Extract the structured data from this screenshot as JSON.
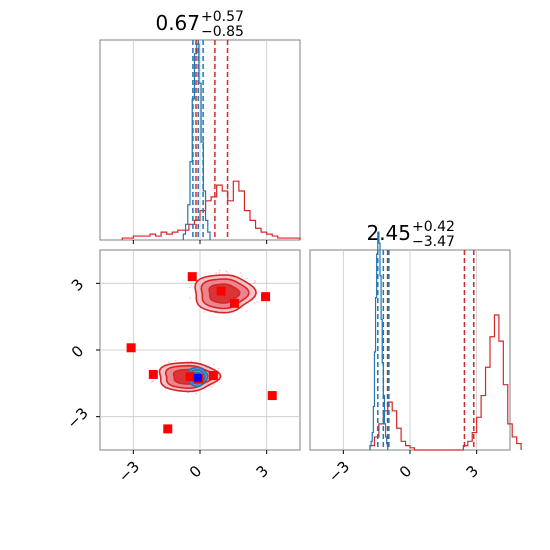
{
  "chart_data": {
    "type": "corner",
    "x_ticks": [
      -3,
      0,
      3
    ],
    "y_ticks": [
      -3,
      0,
      3
    ],
    "range": [
      -4.5,
      4.5
    ],
    "grid": true,
    "colors": {
      "posterior_a": "#d62728",
      "posterior_b": "#1f77b4",
      "points": "#ff0000",
      "truth": "#0000ff"
    },
    "marginal_x": {
      "title": {
        "median": "0.67",
        "upper": "+0.57",
        "lower": "−0.85"
      },
      "posterior_a_quantiles": [
        -0.18,
        0.67,
        1.24
      ],
      "posterior_b_quantiles": [
        -0.32,
        -0.08,
        0.14
      ],
      "posterior_a_hist": {
        "edges_start": -3.5,
        "bin_width": 0.25,
        "counts": [
          1,
          1,
          2,
          2,
          2,
          3,
          2,
          4,
          3,
          4,
          5,
          5,
          8,
          10,
          15,
          20,
          22,
          28,
          25,
          20,
          30,
          25,
          15,
          10,
          6,
          4,
          3,
          2,
          1,
          1,
          1,
          1
        ]
      },
      "posterior_b_hist": {
        "edges_start": -0.75,
        "bin_width": 0.1,
        "counts": [
          3,
          8,
          18,
          40,
          72,
          95,
          100,
          80,
          50,
          25,
          10,
          4
        ]
      }
    },
    "marginal_y": {
      "title": {
        "median": "2.45",
        "upper": "+0.42",
        "lower": "−3.47"
      },
      "posterior_a_quantiles": [
        -1.01,
        2.45,
        2.87
      ],
      "posterior_b_quantiles": [
        -1.45,
        -1.2,
        -0.95
      ],
      "posterior_a_hist": {
        "edges_start": -1.8,
        "bin_width": 0.2,
        "counts": [
          2,
          6,
          12,
          18,
          22,
          18,
          10,
          4,
          2,
          1,
          0,
          0,
          0,
          0,
          0,
          0,
          0,
          0,
          0,
          0,
          0,
          2,
          4,
          8,
          15,
          25,
          38,
          52,
          62,
          50,
          30,
          12,
          6,
          3
        ]
      },
      "posterior_b_hist": {
        "edges_start": -1.8,
        "bin_width": 0.05,
        "counts": [
          2,
          4,
          8,
          20,
          45,
          70,
          90,
          100,
          95,
          80,
          60,
          40,
          25,
          12,
          6,
          3
        ]
      }
    },
    "joint": {
      "posterior_a_modes": [
        {
          "center": [
            1.05,
            2.55
          ],
          "radius": [
            1.35,
            0.85
          ],
          "levels": [
            0.5,
            0.78,
            1.0
          ]
        },
        {
          "center": [
            -0.55,
            -1.2
          ],
          "radius": [
            1.35,
            0.65
          ],
          "levels": [
            0.5,
            0.78,
            1.0
          ]
        }
      ],
      "posterior_b_mode": {
        "center": [
          -0.12,
          -1.2
        ],
        "radius": [
          0.42,
          0.42
        ],
        "levels": [
          0.45,
          0.75,
          1.0
        ]
      },
      "points": [
        [
          -0.35,
          3.3
        ],
        [
          0.95,
          2.65
        ],
        [
          1.55,
          2.1
        ],
        [
          2.95,
          2.4
        ],
        [
          -3.1,
          0.1
        ],
        [
          -2.1,
          -1.1
        ],
        [
          -0.45,
          -1.2
        ],
        [
          -0.05,
          -1.3
        ],
        [
          0.6,
          -1.15
        ],
        [
          3.25,
          -2.05
        ],
        [
          -1.45,
          -3.55
        ]
      ],
      "truth": [
        -0.1,
        -1.25
      ]
    }
  }
}
